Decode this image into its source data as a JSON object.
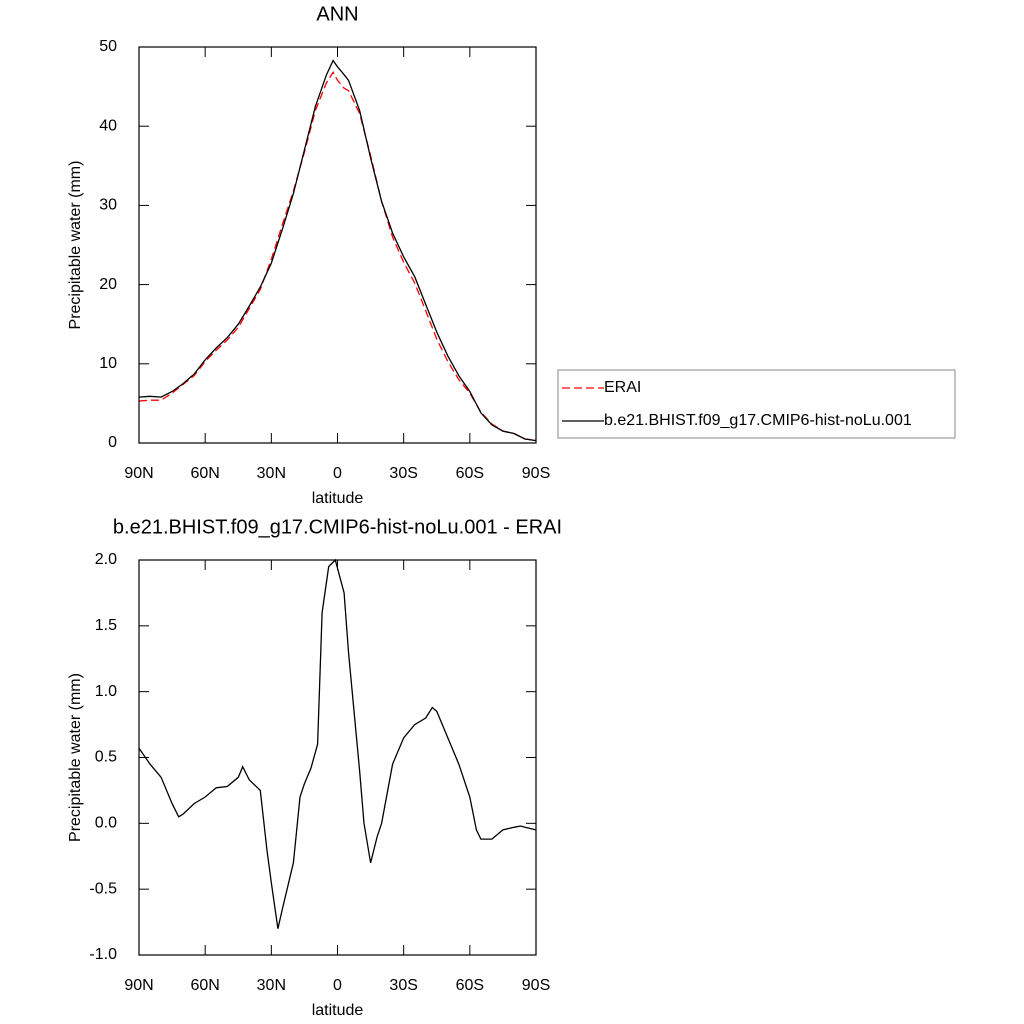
{
  "chart_data": [
    {
      "type": "line",
      "title": "ANN",
      "xlabel": "latitude",
      "ylabel": "Precipitable water (mm)",
      "x": [
        90,
        85,
        80,
        75,
        70,
        65,
        60,
        55,
        50,
        45,
        40,
        35,
        30,
        25,
        20,
        15,
        10,
        5,
        2,
        0,
        -3,
        -5,
        -10,
        -15,
        -20,
        -25,
        -30,
        -35,
        -40,
        -45,
        -50,
        -55,
        -60,
        -65,
        -70,
        -75,
        -80,
        -85,
        -90
      ],
      "xlim": [
        90,
        -90
      ],
      "xticks": [
        {
          "value": 90,
          "label": "90N"
        },
        {
          "value": 60,
          "label": "60N"
        },
        {
          "value": 30,
          "label": "30N"
        },
        0,
        {
          "value": -30,
          "label": "30S"
        },
        {
          "value": -60,
          "label": "60S"
        },
        {
          "value": -90,
          "label": "90S"
        }
      ],
      "ylim": [
        0,
        50
      ],
      "yticks": [
        0,
        10,
        20,
        30,
        40,
        50
      ],
      "legend": "right",
      "series": [
        {
          "name": "ERAI",
          "color": "#ff0000",
          "linestyle": "dashed",
          "values": [
            5.3,
            5.4,
            5.4,
            6.3,
            7.4,
            8.5,
            10.3,
            11.7,
            13,
            14.6,
            17,
            19.4,
            23.2,
            27.6,
            31.8,
            36.7,
            42,
            45.5,
            46.8,
            45.8,
            44.8,
            44.5,
            41.6,
            36.3,
            30.5,
            26,
            22.8,
            20.2,
            16.7,
            13.1,
            10.3,
            8,
            6.3,
            3.9,
            2.4,
            1.5,
            1.2,
            0.5,
            0.35
          ]
        },
        {
          "name": "b.e21.BHIST.f09_g17.CMIP6-hist-noLu.001",
          "color": "#000000",
          "linestyle": "solid",
          "values": [
            5.8,
            5.9,
            5.8,
            6.5,
            7.5,
            8.7,
            10.5,
            12,
            13.3,
            15,
            17.3,
            19.7,
            22.7,
            27,
            31.5,
            37,
            42.5,
            46.5,
            48.3,
            47.5,
            46.5,
            45.8,
            42,
            36,
            30.5,
            26.5,
            23.5,
            21,
            17.5,
            14,
            11,
            8.5,
            6.5,
            3.8,
            2.3,
            1.5,
            1.2,
            0.5,
            0.3
          ]
        }
      ]
    },
    {
      "type": "line",
      "title": "b.e21.BHIST.f09_g17.CMIP6-hist-noLu.001 - ERAI",
      "xlabel": "latitude",
      "ylabel": "Precipitable water (mm)",
      "x": [
        90,
        85,
        80,
        75,
        72,
        70,
        65,
        60,
        55,
        50,
        45,
        43,
        40,
        35,
        32,
        30,
        27,
        25,
        20,
        17,
        15,
        12,
        9,
        7,
        4,
        1,
        -3,
        -5,
        -10,
        -12,
        -15,
        -18,
        -20,
        -25,
        -30,
        -35,
        -40,
        -43,
        -45,
        -50,
        -55,
        -60,
        -63,
        -65,
        -70,
        -75,
        -80,
        -83,
        -85,
        -90
      ],
      "xlim": [
        90,
        -90
      ],
      "xticks": [
        {
          "value": 90,
          "label": "90N"
        },
        {
          "value": 60,
          "label": "60N"
        },
        {
          "value": 30,
          "label": "30N"
        },
        0,
        {
          "value": -30,
          "label": "30S"
        },
        {
          "value": -60,
          "label": "60S"
        },
        {
          "value": -90,
          "label": "90S"
        }
      ],
      "ylim": [
        -1,
        2
      ],
      "yticks": [
        {
          "value": -1,
          "label": "-1.0"
        },
        -0.5,
        {
          "value": 0,
          "label": "0.0"
        },
        0.5,
        {
          "value": 1,
          "label": "1.0"
        },
        1.5,
        {
          "value": 2,
          "label": "2.0"
        }
      ],
      "series": [
        {
          "color": "#000000",
          "linestyle": "solid",
          "values": [
            0.57,
            0.45,
            0.35,
            0.15,
            0.05,
            0.07,
            0.15,
            0.2,
            0.27,
            0.28,
            0.35,
            0.43,
            0.33,
            0.25,
            -0.2,
            -0.45,
            -0.8,
            -0.65,
            -0.3,
            0.2,
            0.3,
            0.42,
            0.6,
            1.6,
            1.95,
            2.0,
            1.75,
            1.3,
            0.4,
            0.0,
            -0.3,
            -0.1,
            0.0,
            0.45,
            0.65,
            0.75,
            0.8,
            0.88,
            0.85,
            0.65,
            0.45,
            0.2,
            -0.05,
            -0.12,
            -0.12,
            -0.05,
            -0.03,
            -0.02,
            -0.03,
            -0.05
          ]
        }
      ]
    }
  ]
}
